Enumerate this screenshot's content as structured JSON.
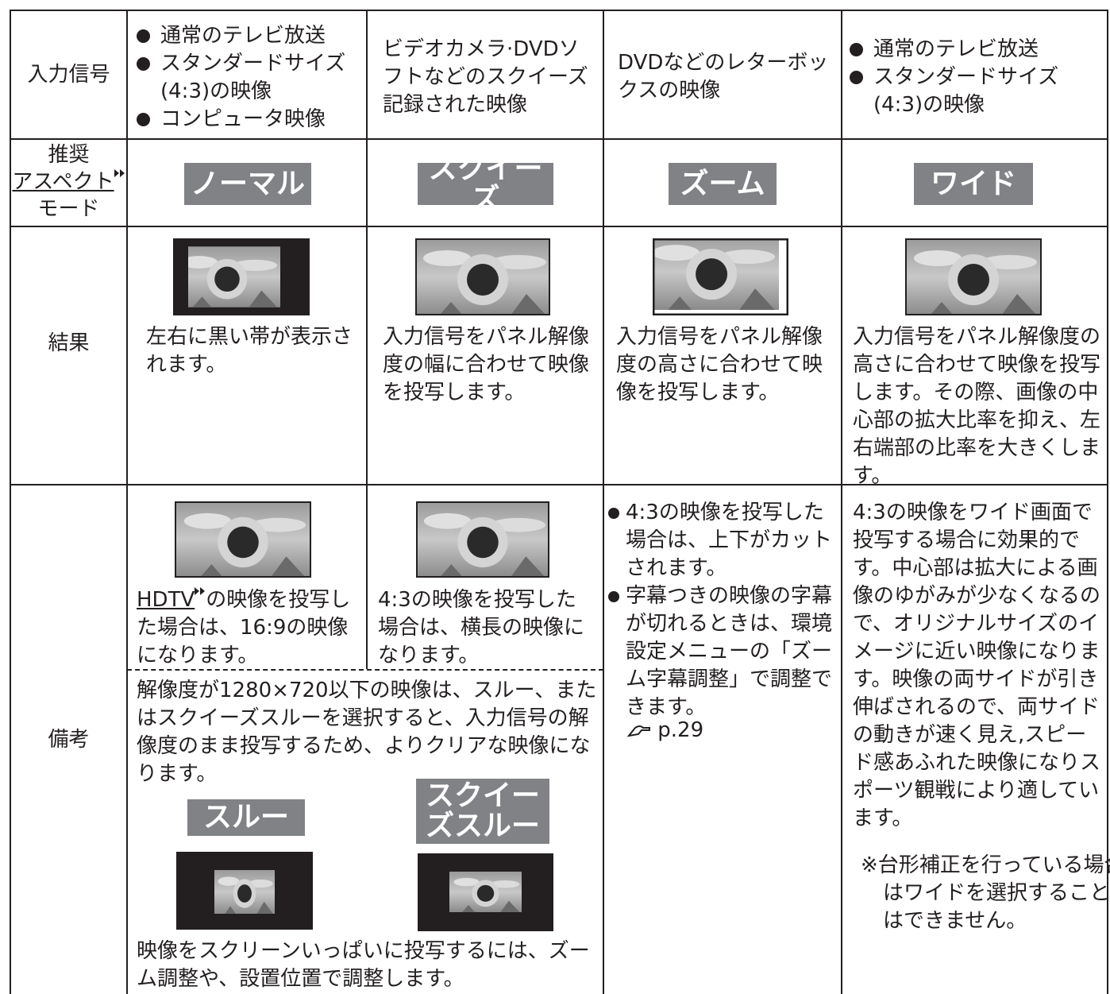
{
  "input_signal": {
    "label": "入力信号",
    "normal": [
      "通常のテレビ放送",
      "スタンダードサイズ(4:3)の映像",
      "コンピュータ映像"
    ],
    "squeeze": "ビデオカメラ·DVDソフトなどのスクイーズ記録された映像",
    "zoom": "DVDなどのレターボックスの映像",
    "wide": [
      "通常のテレビ放送",
      "スタンダードサイズ(4:3)の映像"
    ]
  },
  "aspect_mode": {
    "label": [
      "推奨",
      "アスペクト",
      "モード"
    ],
    "modes": [
      "ノーマル",
      "スクイーズ",
      "ズーム",
      "ワイド"
    ]
  },
  "result": {
    "label": "結果",
    "texts": [
      "左右に黒い帯が表示されます。",
      "入力信号をパネル解像度の幅に合わせて映像を投写します。",
      "入力信号をパネル解像度の高さに合わせて映像を投写します。",
      "入力信号をパネル解像度の高さに合わせて映像を投写します。その際、画像の中心部の拡大比率を抑え、左右端部の比率を大きくします。"
    ]
  },
  "notes": {
    "label": "備考",
    "normal_link": "HDTV",
    "normal": "の映像を投写した場合は、16:9の映像になります。",
    "squeeze": "4:3の映像を投写した場合は、横長の映像になります。",
    "through_intro": "解像度が1280×720以下の映像は、スルー、またはスクイーズスルーを選択すると、入力信号の解像度のまま投写するため、よりクリアな映像になります。",
    "through_modes": [
      "スルー",
      "スクイーズスルー"
    ],
    "through_outro": "映像をスクリーンいっぱいに投写するには、ズーム調整や、設置位置で調整します。",
    "zoom": [
      "4:3の映像を投写した場合は、上下がカットされます。",
      "字幕つきの映像の字幕が切れるときは、環境設定メニューの「ズーム字幕調整」で調整できます。"
    ],
    "zoom_ref": "p.29",
    "wide": "4:3の映像をワイド画面で投写する場合に効果的です。中心部は拡大による画像のゆがみが少なくなるので、オリジナルサイズのイメージに近い映像になります。映像の両サイドが引き伸ばされるので、両サイドの動きが速く見え,スピード感あふれた映像になりスポーツ観戦により適しています。",
    "wide_caution": "※台形補正を行っている場合はワイドを選択することはできません。"
  }
}
